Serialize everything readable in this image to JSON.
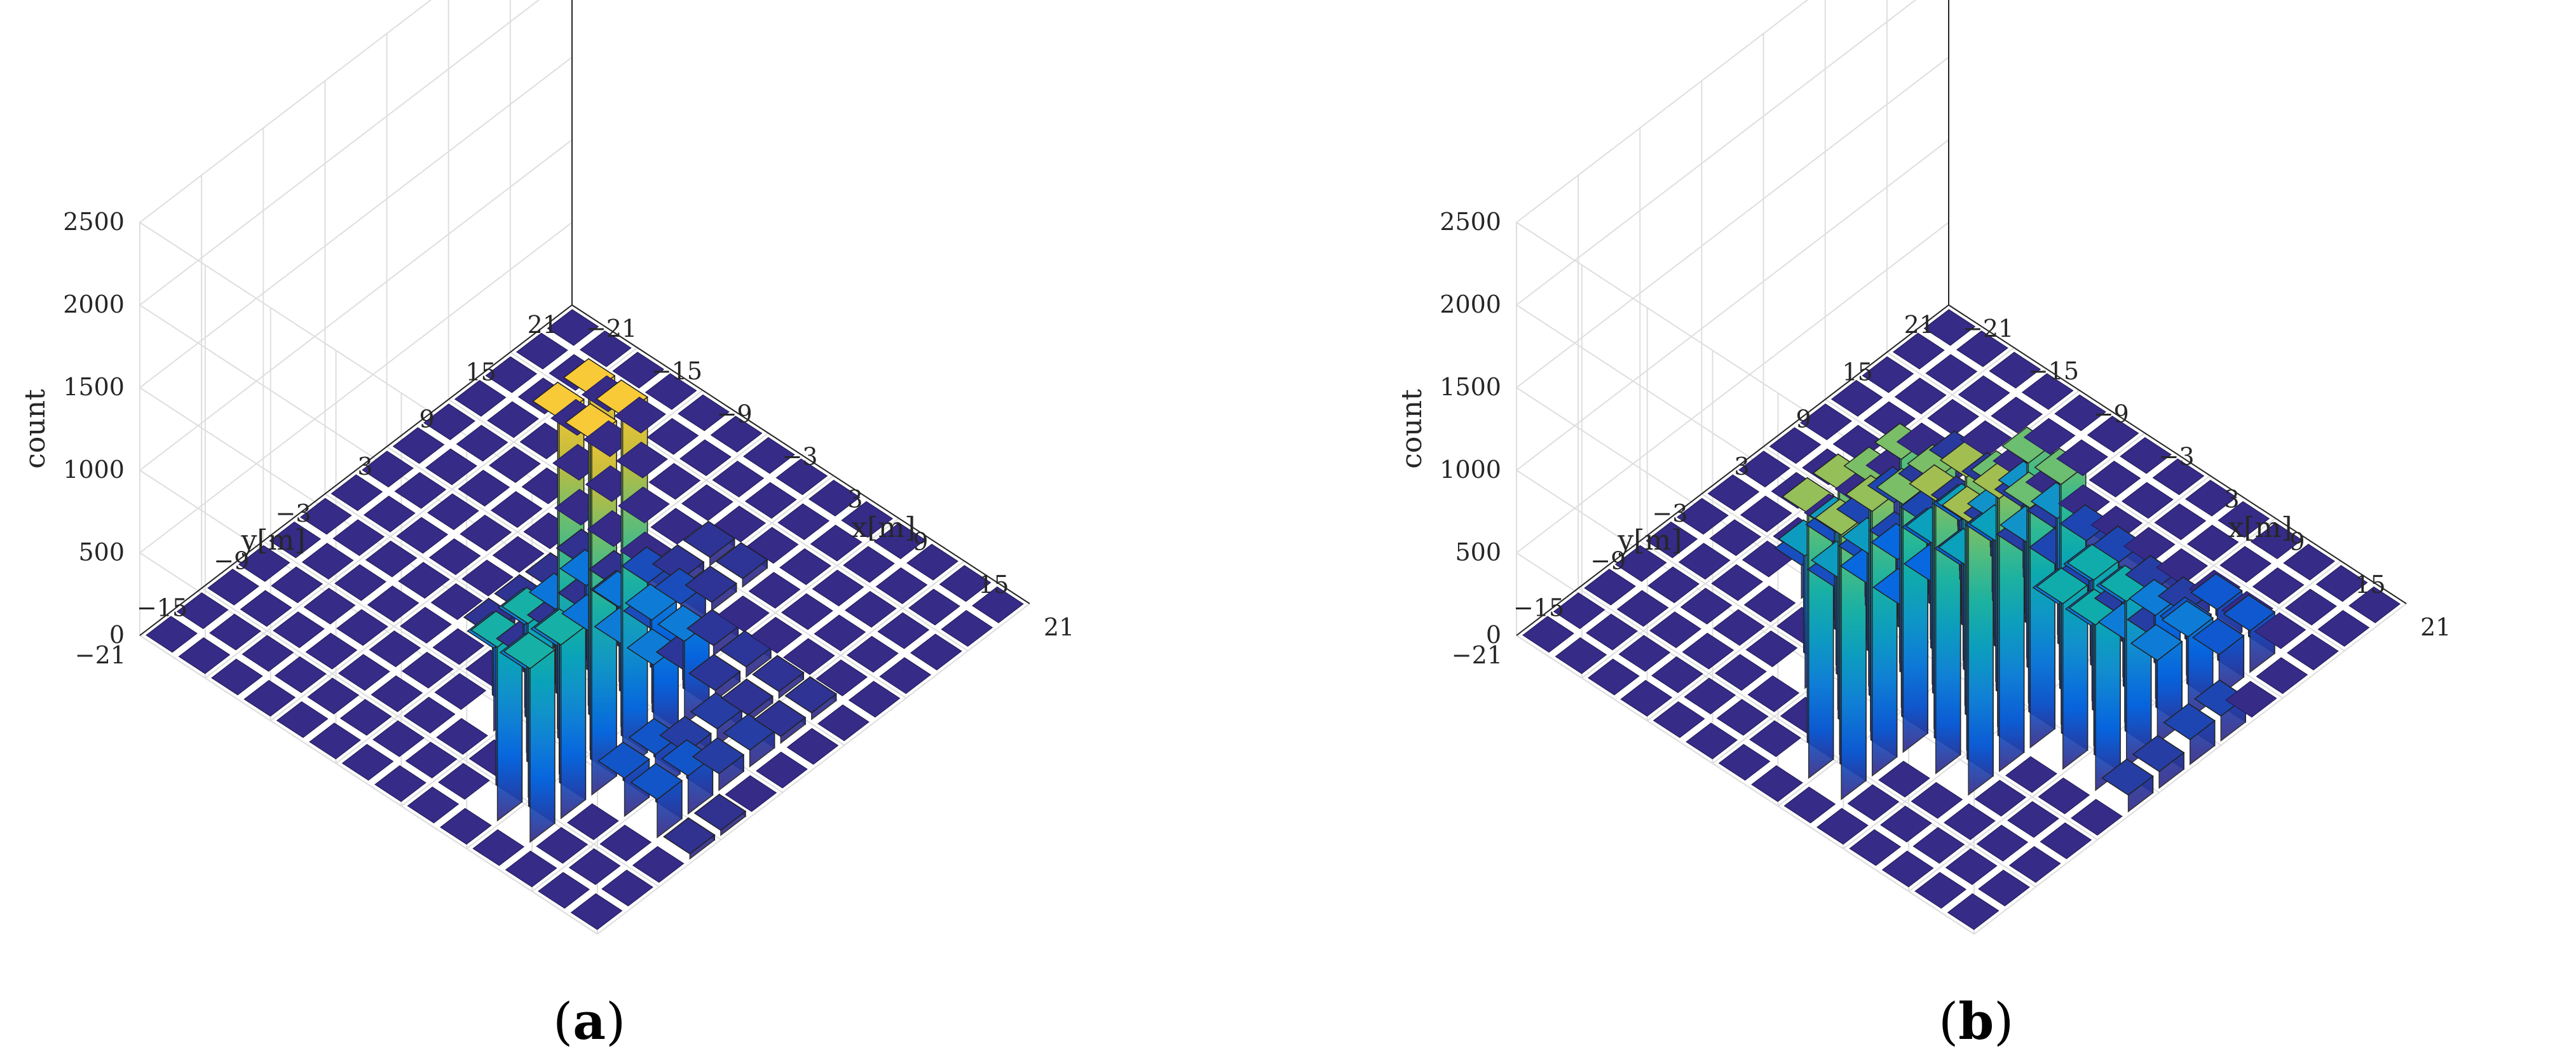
{
  "chart_data": [
    {
      "type": "bar3d",
      "panel_label": "a",
      "xlabel": "x[m]",
      "ylabel": "y[m]",
      "zlabel": "count",
      "x_ticks": [
        "−21",
        "−15",
        "−9",
        "−3",
        "3",
        "9",
        "15",
        "21"
      ],
      "y_ticks": [
        "−21",
        "−15",
        "−9",
        "−3",
        "3",
        "9",
        "15",
        "21"
      ],
      "z_ticks": [
        "0",
        "500",
        "1000",
        "1500",
        "2000",
        "2500"
      ],
      "xlim": [
        -21,
        21
      ],
      "ylim": [
        -21,
        21
      ],
      "zlim": [
        0,
        2500
      ],
      "grid": true,
      "colormap": "parula",
      "bin_size": 3,
      "bins": [
        {
          "x": 9,
          "y": -9,
          "count": 2150
        },
        {
          "x": 9,
          "y": -15,
          "count": 1050
        },
        {
          "x": 9,
          "y": -3,
          "count": 500
        },
        {
          "x": 3,
          "y": -3,
          "count": 450
        },
        {
          "x": 3,
          "y": -9,
          "count": 500
        },
        {
          "x": 3,
          "y": 3,
          "count": 180
        },
        {
          "x": 15,
          "y": -9,
          "count": 230
        },
        {
          "x": 15,
          "y": -3,
          "count": 100
        },
        {
          "x": 9,
          "y": 3,
          "count": 60
        },
        {
          "x": -3,
          "y": -3,
          "count": 40
        },
        {
          "x": -3,
          "y": 3,
          "count": 30
        },
        {
          "x": 15,
          "y": 3,
          "count": 40
        },
        {
          "x": 3,
          "y": 9,
          "count": 50
        },
        {
          "x": 21,
          "y": -9,
          "count": 30
        }
      ]
    },
    {
      "type": "bar3d",
      "panel_label": "b",
      "xlabel": "x[m]",
      "ylabel": "y[m]",
      "zlabel": "count",
      "x_ticks": [
        "−21",
        "−15",
        "−9",
        "−3",
        "3",
        "9",
        "15",
        "21"
      ],
      "y_ticks": [
        "−21",
        "−15",
        "−9",
        "−3",
        "3",
        "9",
        "15",
        "21"
      ],
      "z_ticks": [
        "0",
        "500",
        "1000",
        "1500",
        "2000",
        "2500"
      ],
      "xlim": [
        -21,
        21
      ],
      "ylim": [
        -21,
        21
      ],
      "zlim": [
        0,
        2500
      ],
      "grid": true,
      "colormap": "parula",
      "bin_size": 3,
      "bins": [
        {
          "x": 9,
          "y": -9,
          "count": 1650
        },
        {
          "x": 3,
          "y": -15,
          "count": 1600
        },
        {
          "x": 3,
          "y": -9,
          "count": 1500
        },
        {
          "x": 9,
          "y": -3,
          "count": 1450
        },
        {
          "x": 15,
          "y": -3,
          "count": 1000
        },
        {
          "x": 3,
          "y": -3,
          "count": 850
        },
        {
          "x": -3,
          "y": -9,
          "count": 800
        },
        {
          "x": 3,
          "y": 3,
          "count": 700
        },
        {
          "x": 15,
          "y": 3,
          "count": 500
        },
        {
          "x": 9,
          "y": 3,
          "count": 450
        },
        {
          "x": -3,
          "y": -3,
          "count": 350
        },
        {
          "x": -3,
          "y": 3,
          "count": 300
        },
        {
          "x": 15,
          "y": 9,
          "count": 250
        },
        {
          "x": -9,
          "y": -3,
          "count": 200
        },
        {
          "x": -9,
          "y": 3,
          "count": 150
        },
        {
          "x": 21,
          "y": 3,
          "count": 150
        },
        {
          "x": 3,
          "y": 9,
          "count": 150
        },
        {
          "x": 9,
          "y": 9,
          "count": 100
        },
        {
          "x": -3,
          "y": 9,
          "count": 100
        },
        {
          "x": 21,
          "y": -3,
          "count": 100
        },
        {
          "x": -9,
          "y": 9,
          "count": 80
        }
      ]
    }
  ]
}
